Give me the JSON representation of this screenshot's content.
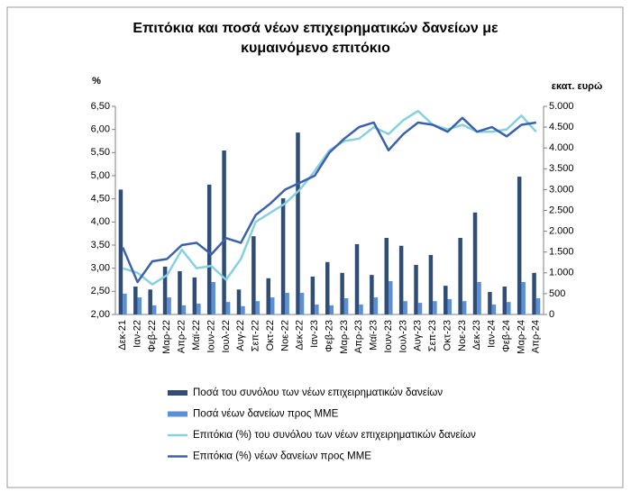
{
  "chart_data": {
    "type": "combo",
    "title": [
      "Επιτόκια και ποσά νέων επιχειρηματικών δανείων με",
      "κυμαινόμενο επιτόκιο"
    ],
    "y_label": "%",
    "y2_label": "εκατ. ευρώ",
    "categories": [
      "Δεκ-21",
      "Ιαν-22",
      "Φεβ-22",
      "Μαρ-22",
      "Απρ-22",
      "Μαϊ-22",
      "Ιουν-22",
      "Ιουλ-22",
      "Αυγ-22",
      "Σεπ-22",
      "Οκτ-22",
      "Νοε-22",
      "Δεκ-22",
      "Ιαν-23",
      "Φεβ-23",
      "Μαρ-23",
      "Απρ-23",
      "Μαϊ-23",
      "Ιουν-23",
      "Ιουλ-23",
      "Αυγ-23",
      "Σεπ-23",
      "Οκτ-23",
      "Νοε-23",
      "Δεκ-23",
      "Ιαν-24",
      "Φεβ-24",
      "Μαρ-24",
      "Απρ-24"
    ],
    "series": [
      {
        "name": "Ποσά του συνόλου των νέων επιχειρηματικών δανείων",
        "type": "bar",
        "axis": "y2",
        "color": "#2f4d75",
        "values": [
          3000,
          670,
          600,
          1150,
          1040,
          890,
          3120,
          3940,
          600,
          1880,
          870,
          2790,
          4370,
          910,
          1260,
          1000,
          1690,
          950,
          1840,
          1650,
          1190,
          1430,
          690,
          1840,
          2450,
          540,
          670,
          3310,
          1000
        ]
      },
      {
        "name": "Ποσά νέων δανείων προς ΜΜΕ",
        "type": "bar",
        "axis": "y2",
        "color": "#5b8fd6",
        "values": [
          500,
          410,
          220,
          410,
          220,
          260,
          780,
          300,
          200,
          320,
          410,
          520,
          520,
          240,
          220,
          390,
          240,
          410,
          800,
          320,
          280,
          320,
          370,
          320,
          780,
          240,
          300,
          780,
          390
        ]
      },
      {
        "name": "Επιτόκια (%) του συνόλου των νέων επιχειρηματικών δανείων",
        "type": "line",
        "axis": "y",
        "color": "#86d0e0",
        "values": [
          3.0,
          2.9,
          2.65,
          2.85,
          3.4,
          3.0,
          3.05,
          2.75,
          3.2,
          4.0,
          4.2,
          4.4,
          4.7,
          5.1,
          5.55,
          5.75,
          5.8,
          6.05,
          5.9,
          6.2,
          6.4,
          6.1,
          6.0,
          6.1,
          5.95,
          5.95,
          6.0,
          6.3,
          5.95
        ]
      },
      {
        "name": "Επιτόκια (%) νέων δανείων προς ΜΜΕ",
        "type": "line",
        "axis": "y",
        "color": "#3b62a8",
        "values": [
          3.45,
          2.7,
          3.15,
          3.2,
          3.5,
          3.55,
          3.3,
          3.65,
          3.55,
          4.15,
          4.4,
          4.7,
          4.85,
          5.0,
          5.5,
          5.8,
          6.05,
          6.15,
          5.55,
          5.9,
          6.15,
          6.1,
          5.95,
          6.25,
          5.95,
          6.05,
          5.85,
          6.1,
          6.15
        ]
      }
    ],
    "ylim": [
      2,
      6.5
    ],
    "yticks": [
      {
        "value": 2,
        "label": "2,00"
      },
      {
        "value": 2.5,
        "label": "2,50"
      },
      {
        "value": 3,
        "label": "3,00"
      },
      {
        "value": 3.5,
        "label": "3,50"
      },
      {
        "value": 4,
        "label": "4,00"
      },
      {
        "value": 4.5,
        "label": "4,50"
      },
      {
        "value": 5,
        "label": "5,00"
      },
      {
        "value": 5.5,
        "label": "5,50"
      },
      {
        "value": 6,
        "label": "6,00"
      },
      {
        "value": 6.5,
        "label": "6,50"
      }
    ],
    "y2lim": [
      0,
      5000
    ],
    "y2ticks": [
      0,
      500,
      {
        "value": 1000,
        "label": "1.000"
      },
      {
        "value": 1500,
        "label": "1.500"
      },
      {
        "value": 2000,
        "label": "2.000"
      },
      {
        "value": 2500,
        "label": "2.500"
      },
      {
        "value": 3000,
        "label": "3.000"
      },
      {
        "value": 3500,
        "label": "3.500"
      },
      {
        "value": 4000,
        "label": "4.000"
      },
      {
        "value": 4500,
        "label": "4.500"
      },
      {
        "value": 5000,
        "label": "5.000"
      }
    ],
    "grid": false
  }
}
